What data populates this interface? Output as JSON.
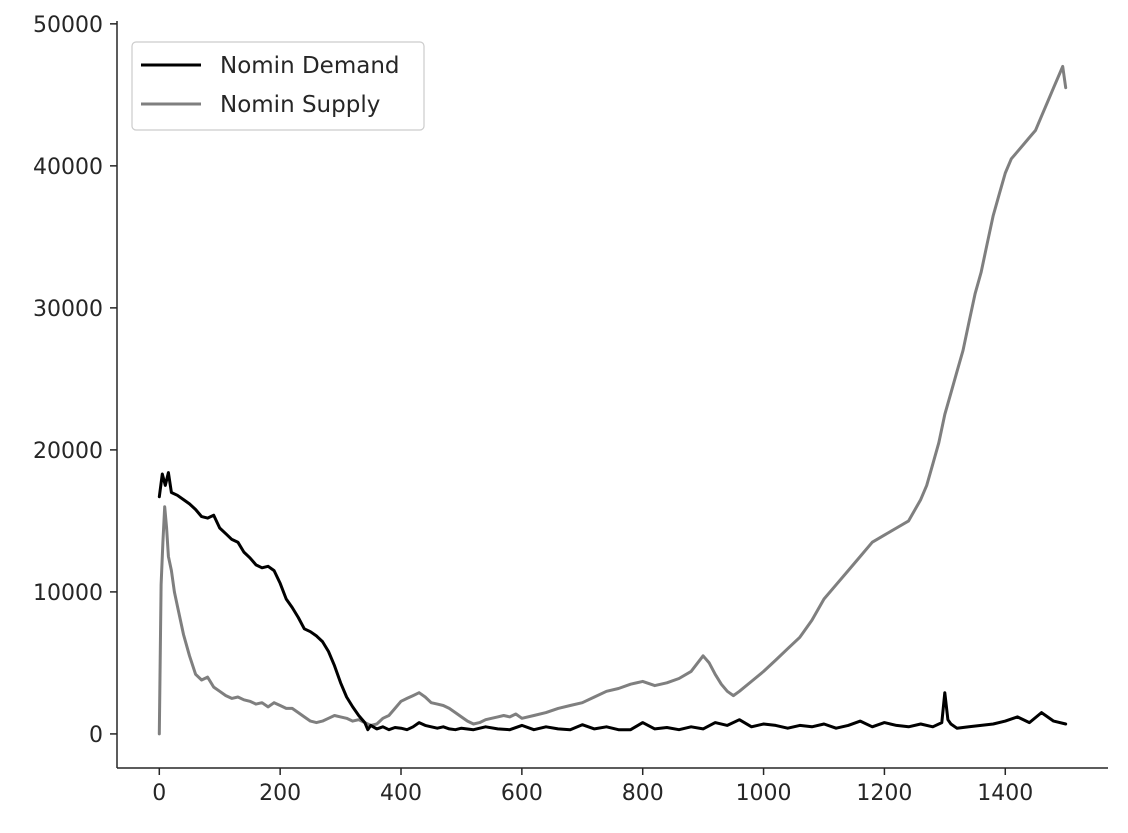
{
  "chart_data": {
    "type": "line",
    "title": "",
    "xlabel": "",
    "ylabel": "",
    "xlim": [
      -70,
      1570
    ],
    "ylim": [
      -2400,
      50200
    ],
    "xticks": [
      0,
      200,
      400,
      600,
      800,
      1000,
      1200,
      1400
    ],
    "xtick_labels": [
      "0",
      "200",
      "400",
      "600",
      "800",
      "1000",
      "1200",
      "1400"
    ],
    "yticks": [
      0,
      10000,
      20000,
      30000,
      40000,
      50000
    ],
    "ytick_labels": [
      "0",
      "10000",
      "20000",
      "30000",
      "40000",
      "50000"
    ],
    "grid": false,
    "legend_position": "top-left",
    "series": [
      {
        "name": "Nomin Demand",
        "color": "#000000",
        "x": [
          0,
          5,
          10,
          15,
          20,
          30,
          40,
          50,
          60,
          70,
          80,
          90,
          100,
          110,
          120,
          130,
          140,
          150,
          160,
          170,
          180,
          190,
          200,
          210,
          220,
          230,
          240,
          250,
          260,
          270,
          280,
          290,
          300,
          310,
          320,
          330,
          340,
          345,
          350,
          360,
          370,
          380,
          390,
          400,
          410,
          420,
          430,
          440,
          450,
          460,
          470,
          480,
          490,
          500,
          520,
          540,
          560,
          580,
          600,
          620,
          640,
          660,
          680,
          700,
          720,
          740,
          760,
          780,
          800,
          820,
          840,
          860,
          880,
          900,
          920,
          940,
          960,
          980,
          1000,
          1020,
          1040,
          1060,
          1080,
          1100,
          1120,
          1140,
          1160,
          1180,
          1200,
          1220,
          1240,
          1260,
          1280,
          1295,
          1300,
          1305,
          1310,
          1320,
          1340,
          1360,
          1380,
          1400,
          1420,
          1440,
          1460,
          1480,
          1500
        ],
        "values": [
          16700,
          18300,
          17500,
          18400,
          17000,
          16800,
          16500,
          16200,
          15800,
          15300,
          15200,
          15400,
          14500,
          14100,
          13700,
          13500,
          12800,
          12400,
          11900,
          11700,
          11800,
          11500,
          10600,
          9500,
          8900,
          8200,
          7400,
          7200,
          6900,
          6500,
          5800,
          4800,
          3600,
          2600,
          1900,
          1300,
          800,
          300,
          600,
          350,
          500,
          300,
          450,
          400,
          300,
          500,
          800,
          600,
          500,
          400,
          500,
          350,
          300,
          400,
          300,
          500,
          350,
          300,
          600,
          300,
          500,
          350,
          300,
          650,
          350,
          500,
          300,
          300,
          800,
          350,
          450,
          300,
          500,
          350,
          800,
          600,
          1000,
          500,
          700,
          600,
          400,
          600,
          500,
          700,
          400,
          600,
          900,
          500,
          800,
          600,
          500,
          700,
          500,
          800,
          2900,
          1000,
          700,
          400,
          500,
          600,
          700,
          900,
          1200,
          800,
          1500,
          900,
          700
        ]
      },
      {
        "name": "Nomin Supply",
        "color": "#7f7f7f",
        "x": [
          0,
          3,
          6,
          9,
          12,
          15,
          20,
          25,
          30,
          40,
          50,
          60,
          70,
          80,
          90,
          100,
          110,
          120,
          130,
          140,
          150,
          160,
          170,
          180,
          190,
          200,
          210,
          220,
          230,
          240,
          250,
          260,
          270,
          280,
          290,
          300,
          310,
          320,
          330,
          340,
          350,
          360,
          370,
          380,
          390,
          400,
          410,
          420,
          430,
          440,
          450,
          460,
          470,
          480,
          490,
          500,
          510,
          520,
          530,
          540,
          550,
          560,
          570,
          580,
          590,
          600,
          620,
          640,
          660,
          680,
          700,
          720,
          740,
          760,
          780,
          800,
          820,
          840,
          860,
          880,
          900,
          910,
          920,
          930,
          940,
          950,
          960,
          980,
          1000,
          1020,
          1040,
          1060,
          1080,
          1100,
          1120,
          1140,
          1160,
          1180,
          1200,
          1220,
          1240,
          1260,
          1270,
          1280,
          1290,
          1300,
          1310,
          1320,
          1330,
          1340,
          1350,
          1360,
          1370,
          1380,
          1390,
          1400,
          1410,
          1420,
          1430,
          1440,
          1450,
          1460,
          1470,
          1480,
          1490,
          1495,
          1500
        ],
        "values": [
          0,
          10500,
          13500,
          16000,
          14500,
          12500,
          11500,
          10000,
          9000,
          7000,
          5500,
          4200,
          3800,
          4000,
          3300,
          3000,
          2700,
          2500,
          2600,
          2400,
          2300,
          2100,
          2200,
          1900,
          2200,
          2000,
          1800,
          1800,
          1500,
          1200,
          900,
          800,
          900,
          1100,
          1300,
          1200,
          1100,
          900,
          1000,
          800,
          600,
          700,
          1100,
          1300,
          1800,
          2300,
          2500,
          2700,
          2900,
          2600,
          2200,
          2100,
          2000,
          1800,
          1500,
          1200,
          900,
          700,
          800,
          1000,
          1100,
          1200,
          1300,
          1200,
          1400,
          1100,
          1300,
          1500,
          1800,
          2000,
          2200,
          2600,
          3000,
          3200,
          3500,
          3700,
          3400,
          3600,
          3900,
          4400,
          5500,
          5000,
          4200,
          3500,
          3000,
          2700,
          3000,
          3700,
          4400,
          5200,
          6000,
          6800,
          8000,
          9500,
          10500,
          11500,
          12500,
          13500,
          14000,
          14500,
          15000,
          16500,
          17500,
          19000,
          20500,
          22500,
          24000,
          25500,
          27000,
          29000,
          31000,
          32500,
          34500,
          36500,
          38000,
          39500,
          40500,
          41000,
          41500,
          42000,
          42500,
          43500,
          44500,
          45500,
          46500,
          47000,
          45500
        ]
      }
    ]
  }
}
